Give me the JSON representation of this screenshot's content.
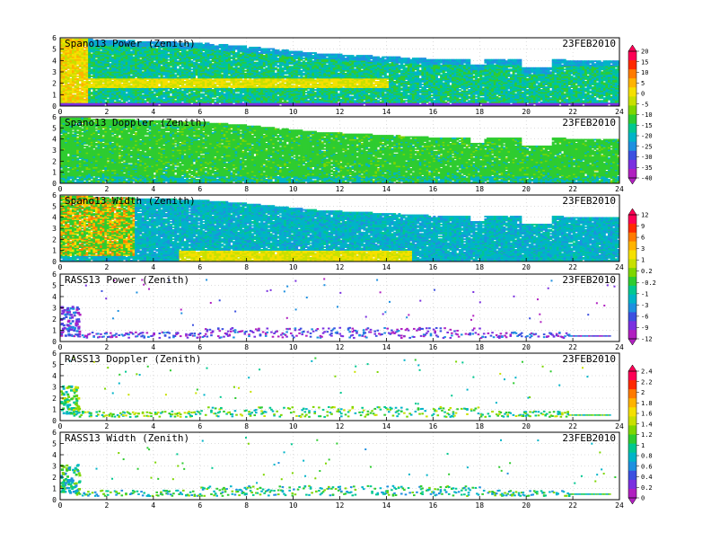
{
  "chart_data": [
    {
      "type": "heatmap",
      "title": "Spano13 Power (Zenith)",
      "date": "23FEB2010",
      "x_ticks": [
        "0",
        "2",
        "4",
        "6",
        "8",
        "10",
        "12",
        "14",
        "16",
        "18",
        "20",
        "22",
        "24"
      ],
      "y_ticks": [
        "0",
        "1",
        "2",
        "3",
        "4",
        "5",
        "6"
      ],
      "xlim": [
        0,
        24
      ],
      "ylim": [
        0,
        6
      ],
      "colorbar": {
        "labels": [
          "20",
          "15",
          "10",
          "5",
          "0",
          "-5",
          "-10",
          "-15",
          "-20",
          "-25",
          "-30",
          "-35",
          "-40"
        ]
      },
      "profile": {
        "kind": "heat",
        "top": [
          [
            0,
            5.9
          ],
          [
            3,
            5.7
          ],
          [
            6,
            5.5
          ],
          [
            8,
            5.2
          ],
          [
            9,
            5.0
          ],
          [
            11,
            4.6
          ],
          [
            13,
            4.4
          ],
          [
            16,
            4.1
          ],
          [
            19,
            4.1
          ],
          [
            22,
            4.0
          ],
          [
            24,
            4.0
          ]
        ],
        "gaps": [
          [
            16.2,
            16.6,
            5.0
          ],
          [
            17.5,
            18.1,
            3.6
          ],
          [
            19.2,
            19.5,
            4.4
          ],
          [
            19.8,
            21.1,
            3.3
          ],
          [
            22.3,
            22.7,
            4.5
          ]
        ]
      }
    },
    {
      "type": "heatmap",
      "title": "Spano13 Doppler (Zenith)",
      "date": "23FEB2010",
      "x_ticks": [
        "0",
        "2",
        "4",
        "6",
        "8",
        "10",
        "12",
        "14",
        "16",
        "18",
        "20",
        "22",
        "24"
      ],
      "y_ticks": [
        "0",
        "1",
        "2",
        "3",
        "4",
        "5",
        "6"
      ],
      "xlim": [
        0,
        24
      ],
      "ylim": [
        0,
        6
      ],
      "profile": {
        "kind": "doppler",
        "top": [
          [
            0,
            5.9
          ],
          [
            3,
            5.7
          ],
          [
            6,
            5.5
          ],
          [
            8,
            5.2
          ],
          [
            9,
            5.0
          ],
          [
            11,
            4.6
          ],
          [
            13,
            4.4
          ],
          [
            16,
            4.1
          ],
          [
            19,
            4.1
          ],
          [
            22,
            4.0
          ],
          [
            24,
            4.0
          ]
        ],
        "gaps": [
          [
            16.2,
            16.6,
            5.0
          ],
          [
            17.5,
            18.1,
            3.6
          ],
          [
            19.2,
            19.5,
            4.4
          ],
          [
            19.8,
            21.1,
            3.3
          ],
          [
            22.3,
            22.7,
            4.5
          ]
        ]
      }
    },
    {
      "type": "heatmap",
      "title": "Spano13 Width (Zenith)",
      "date": "23FEB2010",
      "x_ticks": [
        "0",
        "2",
        "4",
        "6",
        "8",
        "10",
        "12",
        "14",
        "16",
        "18",
        "20",
        "22",
        "24"
      ],
      "y_ticks": [
        "0",
        "1",
        "2",
        "3",
        "4",
        "5",
        "6"
      ],
      "xlim": [
        0,
        24
      ],
      "ylim": [
        0,
        6
      ],
      "colorbar": {
        "labels": [
          "12",
          "9",
          "6",
          "3",
          "1",
          "0.2",
          "-0.2",
          "-1",
          "-3",
          "-6",
          "-9",
          "-12"
        ]
      },
      "profile": {
        "kind": "width",
        "top": [
          [
            0,
            5.9
          ],
          [
            3,
            5.7
          ],
          [
            6,
            5.5
          ],
          [
            8,
            5.2
          ],
          [
            9,
            5.0
          ],
          [
            11,
            4.6
          ],
          [
            13,
            4.4
          ],
          [
            16,
            4.1
          ],
          [
            19,
            4.1
          ],
          [
            22,
            4.0
          ],
          [
            24,
            4.0
          ]
        ],
        "gaps": [
          [
            16.2,
            16.6,
            5.0
          ],
          [
            17.5,
            18.1,
            3.6
          ],
          [
            19.2,
            19.5,
            4.4
          ],
          [
            19.8,
            21.1,
            3.3
          ],
          [
            22.3,
            22.7,
            4.5
          ]
        ]
      }
    },
    {
      "type": "heatmap",
      "title": "RASS13 Power (Zenith)",
      "date": "23FEB2010",
      "x_ticks": [
        "0",
        "2",
        "4",
        "6",
        "8",
        "10",
        "12",
        "14",
        "16",
        "18",
        "20",
        "22",
        "24"
      ],
      "y_ticks": [
        "0",
        "1",
        "2",
        "3",
        "4",
        "5",
        "6"
      ],
      "xlim": [
        0,
        24
      ],
      "ylim": [
        0,
        6
      ],
      "profile": {
        "kind": "rass-power"
      }
    },
    {
      "type": "heatmap",
      "title": "RASS13 Doppler (Zenith)",
      "date": "23FEB2010",
      "x_ticks": [
        "0",
        "2",
        "4",
        "6",
        "8",
        "10",
        "12",
        "14",
        "16",
        "18",
        "20",
        "22",
        "24"
      ],
      "y_ticks": [
        "0",
        "1",
        "2",
        "3",
        "4",
        "5",
        "6"
      ],
      "xlim": [
        0,
        24
      ],
      "ylim": [
        0,
        6
      ],
      "colorbar": {
        "labels": [
          "2.4",
          "2.2",
          "2",
          "1.8",
          "1.6",
          "1.4",
          "1.2",
          "1",
          "0.8",
          "0.6",
          "0.4",
          "0.2",
          "0"
        ]
      },
      "profile": {
        "kind": "rass-doppler"
      }
    },
    {
      "type": "heatmap",
      "title": "RASS13 Width (Zenith)",
      "date": "23FEB2010",
      "x_ticks": [
        "0",
        "2",
        "4",
        "6",
        "8",
        "10",
        "12",
        "14",
        "16",
        "18",
        "20",
        "22",
        "24"
      ],
      "y_ticks": [
        "0",
        "1",
        "2",
        "3",
        "4",
        "5",
        "6"
      ],
      "xlim": [
        0,
        24
      ],
      "ylim": [
        0,
        6
      ],
      "profile": {
        "kind": "rass-width"
      }
    }
  ],
  "colors": {
    "scale": [
      "#ff0055",
      "#ff2a00",
      "#ff7a00",
      "#ffb300",
      "#f5e000",
      "#c8e000",
      "#7ed600",
      "#2ecc30",
      "#00c890",
      "#00b4c8",
      "#1e90e0",
      "#3c50e0",
      "#7a30e0",
      "#b020c0"
    ]
  }
}
